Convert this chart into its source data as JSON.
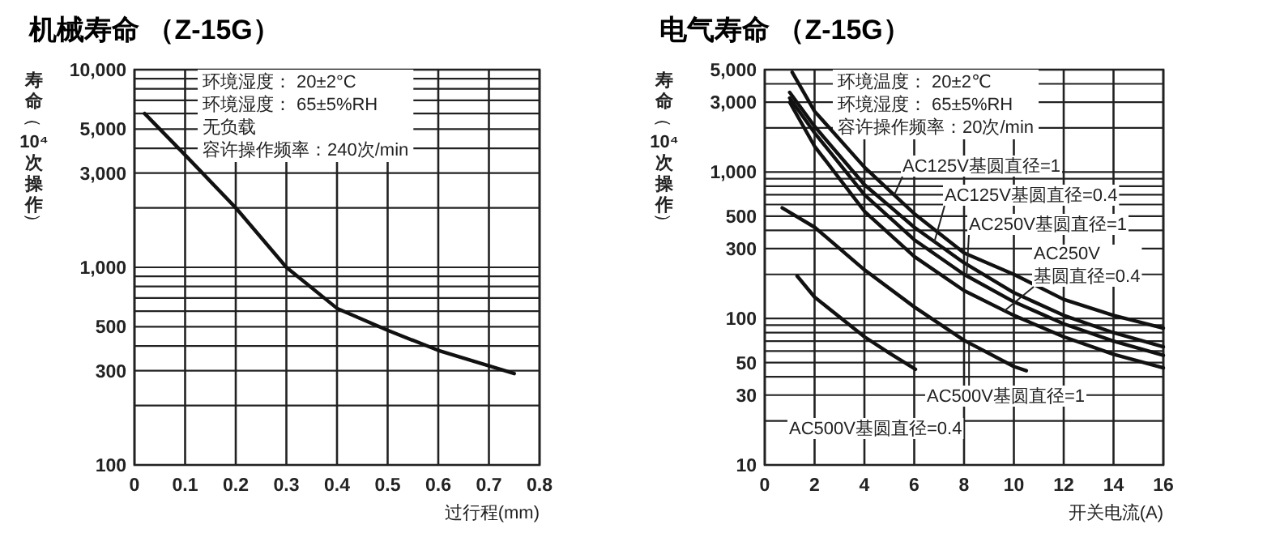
{
  "chart_data": [
    {
      "type": "line",
      "title": "机械寿命 （Z-15G）",
      "xlabel": "过行程(mm)",
      "ylabel": "寿命（10⁴次操作）",
      "log": "y",
      "grid": true,
      "marker": "none",
      "line_style": "solid",
      "xlim": [
        0,
        0.8
      ],
      "xticks": [
        0,
        0.1,
        0.2,
        0.3,
        0.4,
        0.5,
        0.6,
        0.7,
        0.8
      ],
      "ylim": [
        100,
        10000
      ],
      "yticks": [
        {
          "value": 100,
          "label": "100"
        },
        {
          "value": 200,
          "label": null
        },
        {
          "value": 300,
          "label": "300"
        },
        {
          "value": 400,
          "label": null
        },
        {
          "value": 500,
          "label": "500"
        },
        {
          "value": 600,
          "label": null
        },
        {
          "value": 700,
          "label": null
        },
        {
          "value": 800,
          "label": null
        },
        {
          "value": 900,
          "label": null
        },
        {
          "value": 1000,
          "label": "1,000"
        },
        {
          "value": 2000,
          "label": null
        },
        {
          "value": 3000,
          "label": "3,000"
        },
        {
          "value": 4000,
          "label": null
        },
        {
          "value": 5000,
          "label": "5,000"
        },
        {
          "value": 6000,
          "label": null
        },
        {
          "value": 7000,
          "label": null
        },
        {
          "value": 8000,
          "label": null
        },
        {
          "value": 9000,
          "label": null
        },
        {
          "value": 10000,
          "label": "10,000"
        }
      ],
      "series": [
        {
          "color": "#111111",
          "x": [
            0.02,
            0.1,
            0.2,
            0.3,
            0.4,
            0.5,
            0.6,
            0.75
          ],
          "values": [
            6000,
            3700,
            2000,
            1000,
            620,
            480,
            380,
            290
          ]
        }
      ],
      "annotations": [
        "环境湿度： 20±2°C",
        "环境湿度： 65±5%RH",
        "无负载",
        "容许操作频率：240次/min"
      ]
    },
    {
      "type": "line",
      "title": "电气寿命 （Z-15G）",
      "xlabel": "开关电流(A)",
      "ylabel": "寿命（10⁴次操作）",
      "log": "y",
      "grid": true,
      "marker": "none",
      "line_style": "solid",
      "xlim": [
        0,
        16
      ],
      "xticks": [
        0,
        2,
        4,
        6,
        8,
        10,
        12,
        14,
        16
      ],
      "ylim": [
        10,
        5000
      ],
      "yticks": [
        {
          "value": 10,
          "label": "10"
        },
        {
          "value": 20,
          "label": null
        },
        {
          "value": 30,
          "label": "30"
        },
        {
          "value": 40,
          "label": null
        },
        {
          "value": 50,
          "label": "50"
        },
        {
          "value": 60,
          "label": null
        },
        {
          "value": 70,
          "label": null
        },
        {
          "value": 80,
          "label": null
        },
        {
          "value": 90,
          "label": null
        },
        {
          "value": 100,
          "label": "100"
        },
        {
          "value": 200,
          "label": null
        },
        {
          "value": 300,
          "label": "300"
        },
        {
          "value": 400,
          "label": null
        },
        {
          "value": 500,
          "label": "500"
        },
        {
          "value": 600,
          "label": null
        },
        {
          "value": 700,
          "label": null
        },
        {
          "value": 800,
          "label": null
        },
        {
          "value": 900,
          "label": null
        },
        {
          "value": 1000,
          "label": "1,000"
        },
        {
          "value": 2000,
          "label": null
        },
        {
          "value": 3000,
          "label": "3,000"
        },
        {
          "value": 4000,
          "label": null
        },
        {
          "value": 5000,
          "label": "5,000"
        }
      ],
      "series": [
        {
          "color": "#111111",
          "x": [
            1.1,
            2,
            4,
            6,
            8,
            10,
            12,
            14,
            16
          ],
          "values": [
            4800,
            2600,
            1080,
            520,
            280,
            200,
            135,
            105,
            86
          ]
        },
        {
          "color": "#111111",
          "x": [
            1.0,
            2,
            4,
            6,
            8,
            10,
            12,
            14,
            16
          ],
          "values": [
            3500,
            2050,
            820,
            420,
            240,
            150,
            105,
            80,
            64
          ]
        },
        {
          "color": "#111111",
          "x": [
            1.0,
            2,
            4,
            6,
            8,
            10,
            12,
            14,
            16
          ],
          "values": [
            3200,
            1850,
            700,
            345,
            200,
            130,
            92,
            70,
            56
          ]
        },
        {
          "color": "#111111",
          "x": [
            1.0,
            2,
            4,
            6,
            8,
            10,
            12,
            14,
            16
          ],
          "values": [
            3000,
            1500,
            540,
            265,
            155,
            105,
            75,
            57,
            46
          ]
        },
        {
          "color": "#111111",
          "x": [
            0.7,
            2,
            4,
            6,
            8,
            10,
            10.5
          ],
          "values": [
            570,
            420,
            215,
            120,
            71,
            47,
            44
          ]
        },
        {
          "color": "#111111",
          "x": [
            1.3,
            2,
            4,
            5,
            6.05
          ],
          "values": [
            195,
            140,
            75,
            58,
            45
          ]
        }
      ],
      "annotations": [
        "环境温度： 20±2℃",
        "环境湿度： 65±5%RH",
        "容许操作频率：20次/min",
        {
          "text": "AC125V基圆直径=1",
          "x": 5.2,
          "y": 700
        },
        {
          "text": "AC125V基圆直径=0.4",
          "x": 6.8,
          "y": 330
        },
        {
          "text": "AC250V基圆直径=1",
          "x": 8.1,
          "y": 195
        },
        {
          "text": "AC250V\n基圆直径=0.4",
          "x": 9.6,
          "y": 112
        },
        {
          "text": "AC500V基圆直径=1",
          "x": 8.2,
          "y": 68
        },
        {
          "text": "AC500V基圆直径=0.4",
          "x": 4.0,
          "y": 75
        }
      ]
    }
  ]
}
